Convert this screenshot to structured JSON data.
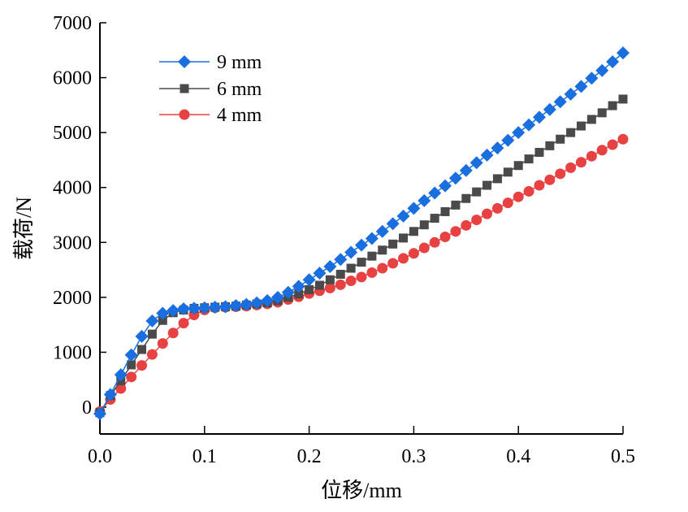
{
  "chart_data": {
    "type": "line",
    "title": "",
    "xlabel": "位移/mm",
    "ylabel": "载荷/N",
    "xlim": [
      0,
      0.5
    ],
    "ylim": [
      -500,
      7000
    ],
    "x_ticks": [
      0.0,
      0.1,
      0.2,
      0.3,
      0.4,
      0.5
    ],
    "x_tick_labels": [
      "0.0",
      "0.1",
      "0.2",
      "0.3",
      "0.4",
      "0.5"
    ],
    "y_ticks": [
      0,
      1000,
      2000,
      3000,
      4000,
      5000,
      6000,
      7000
    ],
    "y_tick_labels": [
      "0",
      "1000",
      "2000",
      "3000",
      "4000",
      "5000",
      "6000",
      "7000"
    ],
    "grid": false,
    "legend_position": "top-left",
    "x": [
      0.0,
      0.01,
      0.02,
      0.03,
      0.04,
      0.05,
      0.06,
      0.07,
      0.08,
      0.09,
      0.1,
      0.11,
      0.12,
      0.13,
      0.14,
      0.15,
      0.16,
      0.17,
      0.18,
      0.19,
      0.2,
      0.21,
      0.22,
      0.23,
      0.24,
      0.25,
      0.26,
      0.27,
      0.28,
      0.29,
      0.3,
      0.31,
      0.32,
      0.33,
      0.34,
      0.35,
      0.36,
      0.37,
      0.38,
      0.39,
      0.4,
      0.41,
      0.42,
      0.43,
      0.44,
      0.45,
      0.46,
      0.47,
      0.48,
      0.49,
      0.5
    ],
    "series": [
      {
        "name": "4 mm",
        "color": "#e84141",
        "marker": "circle",
        "values": [
          -80,
          140,
          340,
          550,
          760,
          960,
          1160,
          1350,
          1530,
          1680,
          1770,
          1810,
          1820,
          1830,
          1840,
          1860,
          1880,
          1910,
          1960,
          2010,
          2070,
          2120,
          2170,
          2230,
          2300,
          2370,
          2450,
          2530,
          2620,
          2710,
          2800,
          2900,
          3000,
          3100,
          3200,
          3310,
          3410,
          3520,
          3620,
          3720,
          3830,
          3930,
          4040,
          4140,
          4250,
          4360,
          4460,
          4570,
          4680,
          4780,
          4880
        ]
      },
      {
        "name": "6 mm",
        "color": "#4a4a4a",
        "marker": "square",
        "values": [
          -100,
          210,
          480,
          770,
          1050,
          1330,
          1580,
          1720,
          1770,
          1800,
          1810,
          1820,
          1830,
          1840,
          1860,
          1880,
          1900,
          1940,
          2000,
          2060,
          2140,
          2220,
          2320,
          2420,
          2530,
          2640,
          2750,
          2860,
          2970,
          3080,
          3200,
          3320,
          3440,
          3560,
          3680,
          3800,
          3920,
          4040,
          4160,
          4280,
          4400,
          4520,
          4640,
          4760,
          4880,
          5000,
          5120,
          5240,
          5360,
          5490,
          5610
        ]
      },
      {
        "name": "9 mm",
        "color": "#1a6fe0",
        "marker": "diamond",
        "values": [
          -120,
          230,
          590,
          950,
          1290,
          1570,
          1710,
          1760,
          1790,
          1800,
          1810,
          1820,
          1830,
          1850,
          1870,
          1900,
          1940,
          2000,
          2090,
          2200,
          2320,
          2440,
          2560,
          2690,
          2820,
          2950,
          3070,
          3200,
          3340,
          3480,
          3620,
          3760,
          3900,
          4030,
          4170,
          4310,
          4450,
          4590,
          4720,
          4860,
          5000,
          5140,
          5280,
          5420,
          5560,
          5700,
          5840,
          5990,
          6130,
          6290,
          6450
        ]
      }
    ],
    "legend": [
      {
        "name": "9 mm",
        "color": "#1a6fe0",
        "marker": "diamond"
      },
      {
        "name": "6 mm",
        "color": "#4a4a4a",
        "marker": "square"
      },
      {
        "name": "4 mm",
        "color": "#e84141",
        "marker": "circle"
      }
    ]
  }
}
